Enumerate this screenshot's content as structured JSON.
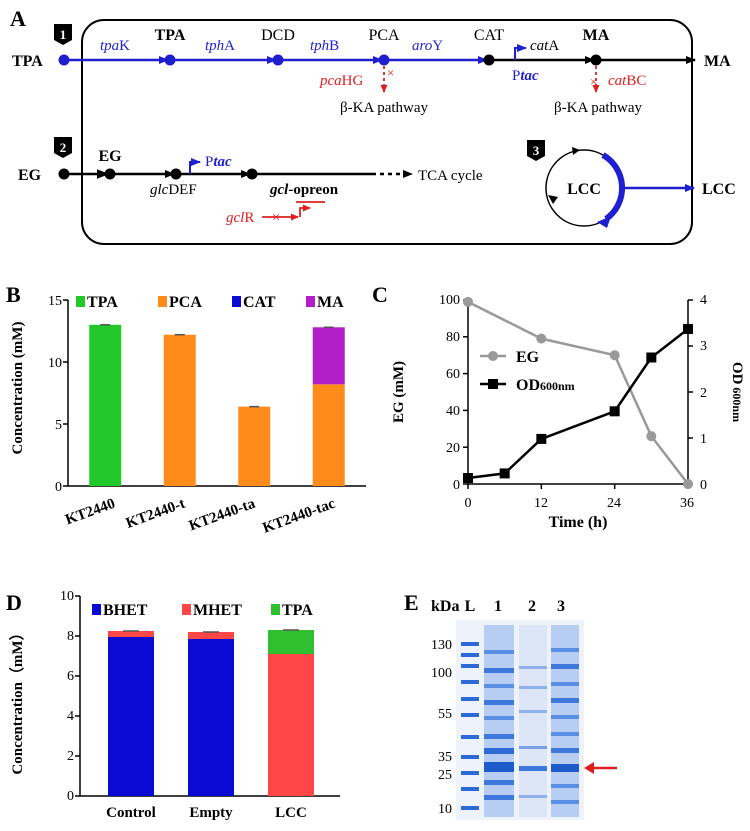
{
  "colors": {
    "blue": "#1f1fd0",
    "red": "#e02020",
    "black": "#000000",
    "green": "#22c82a",
    "orange": "#ff8c1a",
    "navy": "#0a0ad2",
    "magenta": "#b21fc8",
    "gray": "#999999",
    "bhet": "#0a0ad2",
    "mhet": "#ff4747",
    "tpa_d": "#2fbf2f"
  },
  "panelA": {
    "letter": "A",
    "path1_badge": "1",
    "path2_badge": "2",
    "path3_badge": "3",
    "left_tpa": "TPA",
    "right_ma": "MA",
    "enz_tpak_i": "tpa",
    "enz_tpak_r": "K",
    "node_tpa": "TPA",
    "enz_tpha_i": "tph",
    "enz_tpha_r": "A",
    "node_dcd": "DCD",
    "enz_tphb_i": "tph",
    "enz_tphb_r": "B",
    "node_pca": "PCA",
    "enz_aroy_i": "aro",
    "enz_aroy_r": "Y",
    "node_cat": "CAT",
    "cata_i": "cat",
    "cata_r": "A",
    "node_ma": "MA",
    "ptac_p": "P",
    "ptac_i": "tac",
    "pcahg_i": "pca",
    "pcahg_r": "HG",
    "catbc_i": "cat",
    "catbc_r": "BC",
    "bka1": "β-KA pathway",
    "bka2": "β-KA pathway",
    "left_eg": "EG",
    "node_eg": "EG",
    "glcdef_i": "glc",
    "glcdef_r": "DEF",
    "ptac2_p": "P",
    "ptac2_i": "tac",
    "gcl_i": "gcl",
    "gcl_r": "-opreon",
    "tca": "TCA cycle",
    "gclr_i": "gcl",
    "gclr_r": "R",
    "lcc_in": "LCC",
    "lcc_out": "LCC"
  },
  "panelB": {
    "letter": "B",
    "ylabel": "Concentration (mM)",
    "yticks": [
      "0",
      "5",
      "10",
      "15"
    ],
    "legend": [
      "TPA",
      "PCA",
      "CAT",
      "MA"
    ],
    "chart_data": {
      "type": "bar",
      "stacked": true,
      "categories": [
        "KT2440",
        "KT2440-t",
        "KT2440-ta",
        "KT2440-tac"
      ],
      "series": [
        {
          "name": "TPA",
          "values": [
            13.0,
            0,
            0,
            0
          ]
        },
        {
          "name": "PCA",
          "values": [
            0,
            12.2,
            6.4,
            8.2
          ]
        },
        {
          "name": "CAT",
          "values": [
            0,
            0,
            0,
            0
          ]
        },
        {
          "name": "MA",
          "values": [
            0,
            0,
            0,
            4.6
          ]
        }
      ],
      "ylim": [
        0,
        15
      ]
    }
  },
  "panelC": {
    "letter": "C",
    "ylabel_left": "EG (mM)",
    "ylabel_right_a": "OD",
    "ylabel_right_b": " 600nm",
    "xlabel": "Time (h)",
    "xticks": [
      "0",
      "12",
      "24",
      "36"
    ],
    "yticks_left": [
      "0",
      "20",
      "40",
      "60",
      "80",
      "100"
    ],
    "yticks_right": [
      "0",
      "1",
      "2",
      "3",
      "4"
    ],
    "legend_eg": "EG",
    "legend_od_a": "OD",
    "legend_od_b": "600nm",
    "chart_data": {
      "type": "line",
      "series": [
        {
          "name": "EG",
          "axis": "left",
          "x": [
            0,
            12,
            24,
            30,
            36
          ],
          "y": [
            99,
            79,
            70,
            26,
            0
          ]
        },
        {
          "name": "OD600nm",
          "axis": "right",
          "x": [
            0,
            6,
            12,
            24,
            30,
            36
          ],
          "y": [
            0.13,
            0.23,
            0.98,
            1.58,
            2.75,
            3.37
          ]
        }
      ],
      "xlim": [
        0,
        36
      ],
      "ylim_left": [
        0,
        100
      ],
      "ylim_right": [
        0,
        4
      ]
    }
  },
  "panelD": {
    "letter": "D",
    "ylabel": "Concentration（mM）",
    "yticks": [
      "0",
      "2",
      "4",
      "6",
      "8",
      "10"
    ],
    "legend": [
      "BHET",
      "MHET",
      "TPA"
    ],
    "chart_data": {
      "type": "bar",
      "stacked": true,
      "categories": [
        "Control",
        "Empty",
        "LCC"
      ],
      "series": [
        {
          "name": "BHET",
          "values": [
            7.95,
            7.85,
            0
          ]
        },
        {
          "name": "MHET",
          "values": [
            0.3,
            0.35,
            7.1
          ]
        },
        {
          "name": "TPA",
          "values": [
            0,
            0,
            1.2
          ]
        }
      ],
      "ylim": [
        0,
        10
      ]
    }
  },
  "panelE": {
    "letter": "E",
    "kda": "kDa",
    "lanes": [
      "L",
      "1",
      "2",
      "3"
    ],
    "markers": [
      "130",
      "100",
      "55",
      "35",
      "25",
      "10"
    ]
  }
}
